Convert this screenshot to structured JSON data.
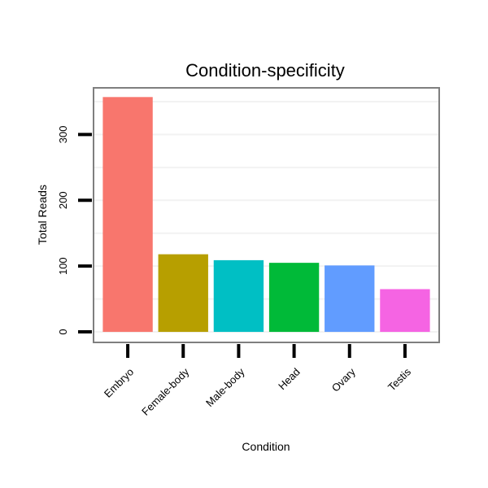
{
  "chart_data": {
    "type": "bar",
    "title": "Condition-specificity",
    "xlabel": "Condition",
    "ylabel": "Total Reads",
    "categories": [
      "Embryo",
      "Female-body",
      "Male-body",
      "Head",
      "Ovary",
      "Testis"
    ],
    "values": [
      357,
      118,
      109,
      105,
      101,
      65
    ],
    "colors": [
      "#F8766D",
      "#B79F00",
      "#00BFC4",
      "#00BA38",
      "#619CFF",
      "#F564E3"
    ],
    "yticks": [
      0,
      100,
      200,
      300
    ],
    "ytick_labels": [
      "0",
      "100",
      "200",
      "300"
    ],
    "ylim": [
      -16,
      371
    ],
    "grid": true,
    "legend": "none"
  }
}
